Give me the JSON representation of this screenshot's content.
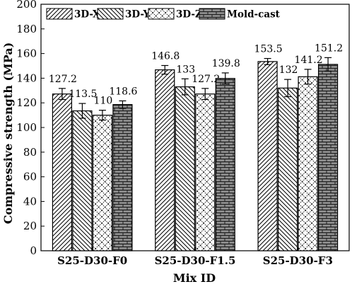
{
  "chart_data": {
    "type": "bar",
    "xlabel": "Mix ID",
    "ylabel": "Compressive strength (MPa)",
    "ylim": [
      0,
      200
    ],
    "ytick_step": 20,
    "grid": false,
    "legend_position": "top",
    "categories": [
      "S25-D30-F0",
      "S25-D30-F1.5",
      "S25-D30-F3"
    ],
    "series": [
      {
        "name": "3D-X",
        "pattern": "diagonal-forward",
        "values": [
          127.2,
          146.8,
          153.5
        ],
        "errors": [
          4.5,
          3.5,
          2.5
        ],
        "labels": [
          "127.2",
          "146.8",
          "153.5"
        ]
      },
      {
        "name": "3D-Y",
        "pattern": "diagonal-back",
        "values": [
          113.5,
          133,
          132
        ],
        "errors": [
          6.0,
          6.5,
          7.0
        ],
        "labels": [
          "113.5",
          "133",
          "132"
        ]
      },
      {
        "name": "3D-Z",
        "pattern": "diagonal-cross",
        "values": [
          110,
          127.2,
          141.2
        ],
        "errors": [
          4.0,
          4.5,
          6.0
        ],
        "labels": [
          "110",
          "127.2",
          "141.2"
        ]
      },
      {
        "name": "Mold-cast",
        "pattern": "brick",
        "values": [
          118.6,
          139.8,
          151.2
        ],
        "errors": [
          3.0,
          4.5,
          5.5
        ],
        "labels": [
          "118.6",
          "139.8",
          "151.2"
        ]
      }
    ]
  }
}
